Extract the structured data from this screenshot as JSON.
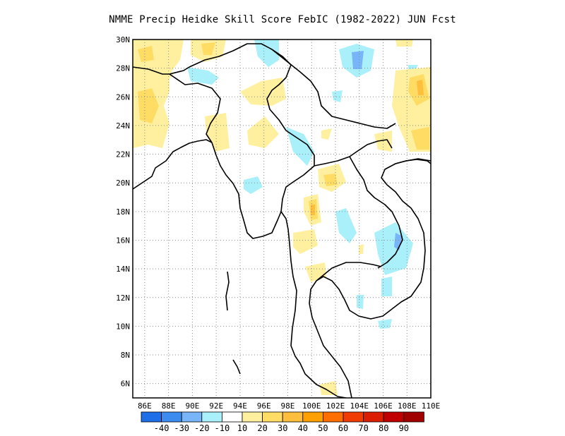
{
  "title": "NMME Precip Heidke Skill Score FebIC (1982-2022) JUN Fcst",
  "map": {
    "lon_range": [
      85,
      110
    ],
    "lat_range": [
      5,
      30
    ],
    "lon_ticks": [
      "86E",
      "88E",
      "90E",
      "92E",
      "94E",
      "96E",
      "98E",
      "100E",
      "102E",
      "104E",
      "106E",
      "108E",
      "110E"
    ],
    "lat_ticks": [
      "6N",
      "8N",
      "10N",
      "12N",
      "14N",
      "16N",
      "18N",
      "20N",
      "22N",
      "24N",
      "26N",
      "28N",
      "30N"
    ],
    "grid": "dotted"
  },
  "colorbar": {
    "labels": [
      "-40",
      "-30",
      "-20",
      "-10",
      "10",
      "20",
      "30",
      "40",
      "50",
      "60",
      "70",
      "80",
      "90"
    ],
    "colors": [
      "#1e6ee8",
      "#3c8cf0",
      "#78b4f8",
      "#aaf0fa",
      "#ffffff",
      "#fff0a0",
      "#ffdc64",
      "#ffbe3c",
      "#ffa000",
      "#ff6e00",
      "#f03c00",
      "#dc1e00",
      "#c00000",
      "#a00000"
    ]
  }
}
